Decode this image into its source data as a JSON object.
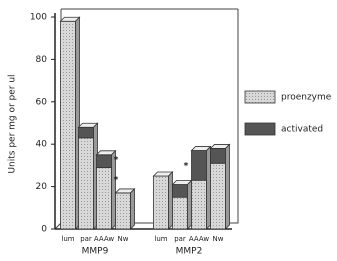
{
  "chart_data": {
    "type": "stacked-bar",
    "y_label": "Units per mg or per ul",
    "categories": [
      "lum",
      "par",
      "AAAw",
      "Nw",
      "lum",
      "par",
      "AAAw",
      "Nw"
    ],
    "groups": [
      "MMP9",
      "MMP2"
    ],
    "series": [
      {
        "name": "proenzyme",
        "color": "#c8c8c8",
        "values": [
          98,
          43,
          29,
          17,
          25,
          15,
          23,
          31
        ]
      },
      {
        "name": "activated",
        "color": "#555555",
        "values": [
          0,
          5,
          6,
          0,
          0,
          6,
          14,
          7
        ]
      }
    ],
    "annotations": [
      "*",
      "*",
      "*"
    ],
    "ylim": [
      0,
      100
    ],
    "yticks": [
      0,
      20,
      40,
      60,
      80,
      100
    ]
  }
}
